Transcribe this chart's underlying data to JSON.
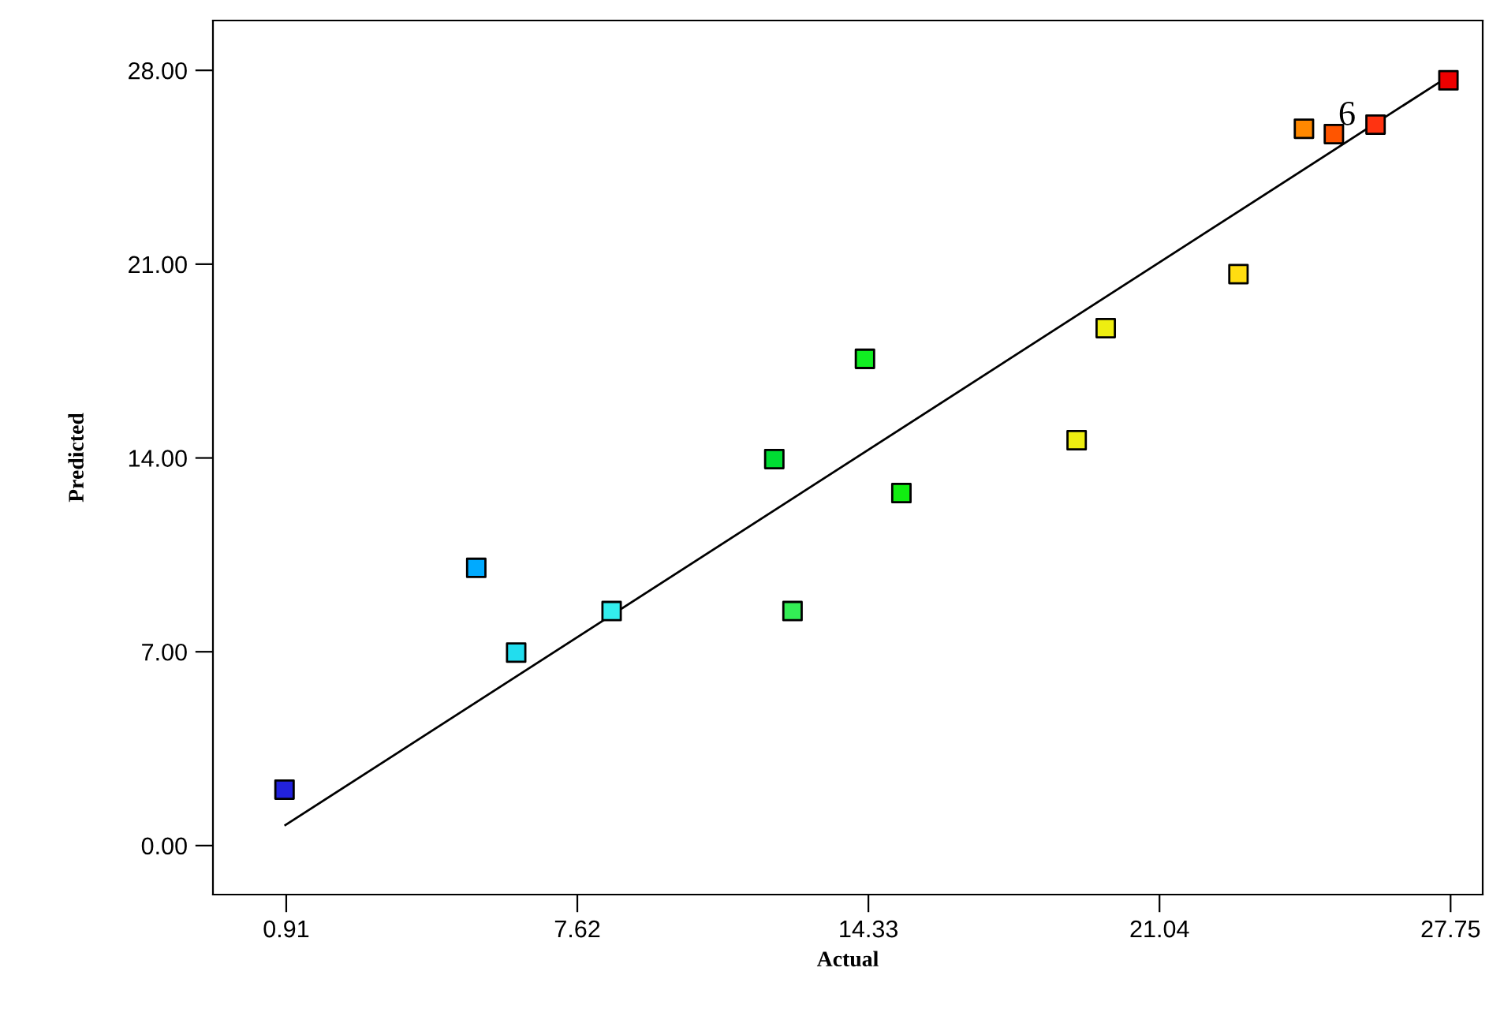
{
  "chart_data": {
    "type": "scatter",
    "xlabel": "Actual",
    "ylabel": "Predicted",
    "grid": false,
    "xlim": [
      -0.78,
      28.49
    ],
    "ylim": [
      -1.77,
      29.8
    ],
    "xticks": [
      {
        "value": 0.91,
        "label": "0.91"
      },
      {
        "value": 7.62,
        "label": "7.62"
      },
      {
        "value": 14.33,
        "label": "14.33"
      },
      {
        "value": 21.04,
        "label": "21.04"
      },
      {
        "value": 27.75,
        "label": "27.75"
      }
    ],
    "yticks": [
      {
        "value": 0,
        "label": "0.00"
      },
      {
        "value": 7,
        "label": "7.00"
      },
      {
        "value": 14,
        "label": "14.00"
      },
      {
        "value": 21,
        "label": "21.00"
      },
      {
        "value": 28,
        "label": "28.00"
      }
    ],
    "annotations": [
      {
        "text": "6",
        "x": 25.06,
        "y": 25.7
      }
    ],
    "series": [
      {
        "marker": "square",
        "x": [
          0.87,
          5.29,
          6.21,
          8.41,
          12.16,
          12.58,
          14.25,
          15.09,
          19.13,
          19.8,
          22.86,
          24.37,
          25.06,
          26.02,
          27.7
        ],
        "values": [
          2.02,
          10.03,
          6.97,
          8.47,
          13.96,
          8.47,
          17.58,
          12.73,
          14.64,
          18.69,
          20.64,
          25.89,
          25.7,
          26.04,
          27.64
        ],
        "colors": [
          "#2222dd",
          "#00aaff",
          "#22ddee",
          "#33eeee",
          "#00dd33",
          "#33ee55",
          "#11ee22",
          "#11ee11",
          "#eeee11",
          "#eeee11",
          "#ffdd11",
          "#ff8800",
          "#ff5500",
          "#ff3311",
          "#ee0000"
        ]
      },
      {
        "type": "line",
        "color": "#000000",
        "x": [
          0.89,
          27.46
        ],
        "values": [
          0.74,
          27.54
        ]
      }
    ]
  }
}
